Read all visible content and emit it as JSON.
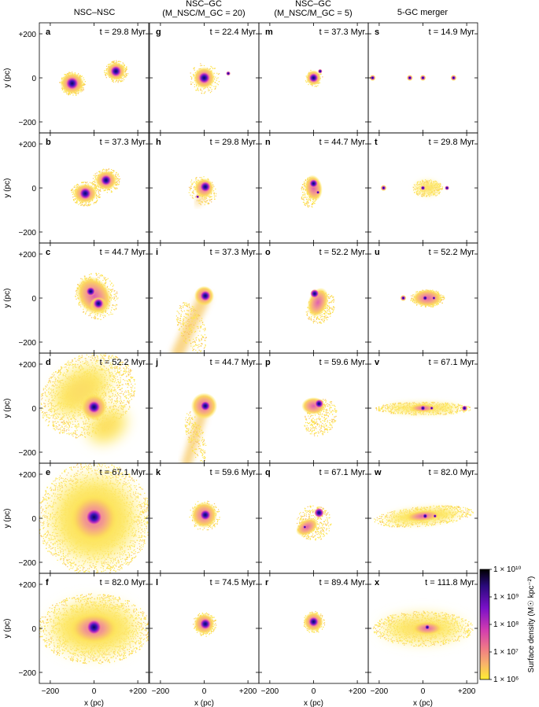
{
  "columns": [
    {
      "title_lines": [
        "NSC–NSC"
      ]
    },
    {
      "title_lines": [
        "NSC–GC",
        "(M_NSC/M_GC = 20)"
      ]
    },
    {
      "title_lines": [
        "NSC–GC",
        "(M_NSC/M_GC = 5)"
      ]
    },
    {
      "title_lines": [
        "5-GC merger"
      ]
    }
  ],
  "panels": [
    {
      "label": "a",
      "time": "t = 29.8 Myr"
    },
    {
      "label": "g",
      "time": "t = 22.4 Myr"
    },
    {
      "label": "m",
      "time": "t = 37.3 Myr"
    },
    {
      "label": "s",
      "time": "t = 14.9 Myr"
    },
    {
      "label": "b",
      "time": "t = 37.3 Myr"
    },
    {
      "label": "h",
      "time": "t = 29.8 Myr"
    },
    {
      "label": "n",
      "time": "t = 44.7 Myr"
    },
    {
      "label": "t",
      "time": "t = 29.8 Myr"
    },
    {
      "label": "c",
      "time": "t = 44.7 Myr"
    },
    {
      "label": "i",
      "time": "t = 37.3 Myr"
    },
    {
      "label": "o",
      "time": "t = 52.2 Myr"
    },
    {
      "label": "u",
      "time": "t = 52.2 Myr"
    },
    {
      "label": "d",
      "time": "t = 52.2 Myr"
    },
    {
      "label": "j",
      "time": "t = 44.7 Myr"
    },
    {
      "label": "p",
      "time": "t = 59.6 Myr"
    },
    {
      "label": "v",
      "time": "t = 67.1 Myr"
    },
    {
      "label": "e",
      "time": "t = 67.1 Myr"
    },
    {
      "label": "k",
      "time": "t = 59.6 Myr"
    },
    {
      "label": "q",
      "time": "t = 67.1 Myr"
    },
    {
      "label": "w",
      "time": "t = 82.0 Myr"
    },
    {
      "label": "f",
      "time": "t = 82.0 Myr"
    },
    {
      "label": "l",
      "time": "t = 74.5 Myr"
    },
    {
      "label": "r",
      "time": "t = 89.4 Myr"
    },
    {
      "label": "x",
      "time": "t = 111.8 Myr"
    }
  ],
  "axes": {
    "xlabel": "x (pc)",
    "ylabel": "y (pc)",
    "xticks": [
      "−200",
      "0",
      "+200"
    ],
    "yticks": [
      "+200",
      "0",
      "−200"
    ],
    "range": [
      -250,
      250
    ]
  },
  "colorbar": {
    "label": "Surface density (M☉ kpc⁻²)",
    "ticks": [
      "1 × 10¹⁰",
      "1 × 10⁹",
      "1 × 10⁸",
      "1 × 10⁷",
      "1 × 10⁶"
    ],
    "colors": [
      "#000000",
      "#2a0a7c",
      "#7a10c8",
      "#d23cb0",
      "#f07a86",
      "#f8b46a",
      "#ffee30"
    ]
  },
  "nucleus_colors": {
    "core": "#1a0a9a",
    "halo": "#d040c0",
    "glow": "#f2849a",
    "field": "#fde05a"
  }
}
